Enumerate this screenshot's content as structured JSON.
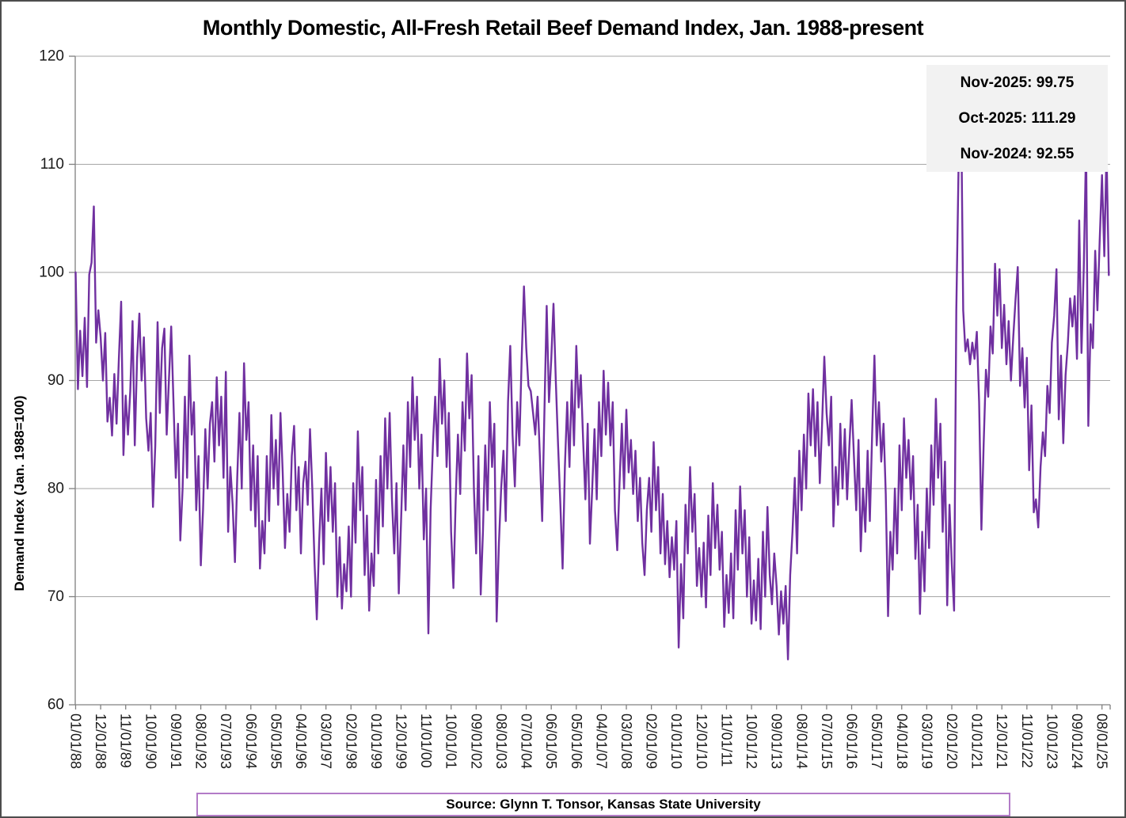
{
  "title": "Monthly Domestic, All-Fresh Retail Beef Demand Index, Jan. 1988-present",
  "y_axis": {
    "title": "Demand Index (Jan. 1988=100)",
    "ticks": [
      60,
      70,
      80,
      90,
      100,
      110,
      120
    ]
  },
  "annotation": {
    "lines": [
      "Nov-2025: 99.75",
      "Oct-2025: 111.29",
      "Nov-2024: 92.55"
    ]
  },
  "source": {
    "text": "Source: Glynn T. Tonsor, Kansas State University"
  },
  "colors": {
    "line": "#7030A0",
    "gridline": "#A6A6A6",
    "axis": "#808080",
    "tick_label": "#1a1a1a",
    "annotation_bg": "#F2F2F2",
    "source_border": "#B27BC7"
  },
  "chart_data": {
    "type": "line",
    "title": "Monthly Domestic, All-Fresh Retail Beef Demand Index, Jan. 1988-present",
    "xlabel": "",
    "ylabel": "Demand Index (Jan. 1988=100)",
    "ylim": [
      60,
      120
    ],
    "grid": "horizontal",
    "legend": "none",
    "x_start": "1988-01",
    "x_end": "2025-11",
    "frequency": "monthly",
    "x_tick_interval_months": 11,
    "x_tick_labels": [
      "01/01/88",
      "12/01/88",
      "11/01/89",
      "10/01/90",
      "09/01/91",
      "08/01/92",
      "07/01/93",
      "06/01/94",
      "05/01/95",
      "04/01/96",
      "03/01/97",
      "02/01/98",
      "01/01/99",
      "12/01/99",
      "11/01/00",
      "10/01/01",
      "09/01/02",
      "08/01/03",
      "07/01/04",
      "06/01/05",
      "05/01/06",
      "04/01/07",
      "03/01/08",
      "02/01/09",
      "01/01/10",
      "12/01/10",
      "11/01/11",
      "10/01/12",
      "09/01/13",
      "08/01/14",
      "07/01/15",
      "06/01/16",
      "05/01/17",
      "04/01/18",
      "03/01/19",
      "02/01/20",
      "01/01/21",
      "12/01/21",
      "11/01/22",
      "10/01/23",
      "09/01/24",
      "08/01/25"
    ],
    "annotated_points": {
      "Nov-2025": 99.75,
      "Oct-2025": 111.29,
      "Nov-2024": 92.55
    },
    "values": [
      100.0,
      89.2,
      94.6,
      90.4,
      95.8,
      89.4,
      99.8,
      100.9,
      106.1,
      93.5,
      96.5,
      94.0,
      90.0,
      94.4,
      86.2,
      88.4,
      84.9,
      90.6,
      86.0,
      92.0,
      97.3,
      83.1,
      88.6,
      85.0,
      89.0,
      95.5,
      84.0,
      92.0,
      96.2,
      90.0,
      94.0,
      86.5,
      83.5,
      87.0,
      78.3,
      84.0,
      95.4,
      87.0,
      93.0,
      94.8,
      85.0,
      90.0,
      95.0,
      88.0,
      81.0,
      86.0,
      75.2,
      80.0,
      88.5,
      81.0,
      92.3,
      85.0,
      88.0,
      78.0,
      83.0,
      72.9,
      78.0,
      85.5,
      80.0,
      86.0,
      88.0,
      82.5,
      90.3,
      84.0,
      88.5,
      81.0,
      90.8,
      76.0,
      82.0,
      78.5,
      73.2,
      81.0,
      87.0,
      80.0,
      91.6,
      84.5,
      88.0,
      78.0,
      84.0,
      76.5,
      83.0,
      72.6,
      77.0,
      74.0,
      83.0,
      77.0,
      86.8,
      80.0,
      84.5,
      78.5,
      87.0,
      81.5,
      74.5,
      79.5,
      76.0,
      83.0,
      85.8,
      78.0,
      82.0,
      74.0,
      80.5,
      82.5,
      78.5,
      85.5,
      80.0,
      73.0,
      67.9,
      75.0,
      80.0,
      73.0,
      83.3,
      77.0,
      82.0,
      76.0,
      80.5,
      70.0,
      75.5,
      68.9,
      73.0,
      70.5,
      76.5,
      70.0,
      80.5,
      75.0,
      85.3,
      78.0,
      82.0,
      72.0,
      77.5,
      68.7,
      74.0,
      71.0,
      80.8,
      74.0,
      83.0,
      76.5,
      86.5,
      80.0,
      87.0,
      79.0,
      74.0,
      80.5,
      70.3,
      77.0,
      84.0,
      78.0,
      88.0,
      82.0,
      90.3,
      84.5,
      88.5,
      80.0,
      85.0,
      75.3,
      80.0,
      66.6,
      78.0,
      84.0,
      88.5,
      83.0,
      92.0,
      86.0,
      90.0,
      82.0,
      87.0,
      76.0,
      70.8,
      79.0,
      85.0,
      79.5,
      88.0,
      83.5,
      92.5,
      86.5,
      90.5,
      80.0,
      74.0,
      83.0,
      70.2,
      76.0,
      84.0,
      78.0,
      88.0,
      82.0,
      86.0,
      67.7,
      75.0,
      80.0,
      83.5,
      77.0,
      88.0,
      93.2,
      85.0,
      80.2,
      88.0,
      84.0,
      92.0,
      98.7,
      93.0,
      89.5,
      89.0,
      87.0,
      85.0,
      88.5,
      83.0,
      77.0,
      87.0,
      96.9,
      88.0,
      92.0,
      97.1,
      90.0,
      84.0,
      78.5,
      72.6,
      82.0,
      88.0,
      82.0,
      90.0,
      84.0,
      93.2,
      87.5,
      90.5,
      84.5,
      79.0,
      86.0,
      74.9,
      80.0,
      85.5,
      79.0,
      88.0,
      83.0,
      90.9,
      85.0,
      89.8,
      84.0,
      88.0,
      78.0,
      74.3,
      80.5,
      86.0,
      80.0,
      87.3,
      81.5,
      84.5,
      79.5,
      83.5,
      77.0,
      81.0,
      75.0,
      72.0,
      78.0,
      81.0,
      76.0,
      84.3,
      78.0,
      82.0,
      74.0,
      79.5,
      73.0,
      77.0,
      71.8,
      75.5,
      72.5,
      77.0,
      65.3,
      73.0,
      68.0,
      78.5,
      74.0,
      82.0,
      76.0,
      79.5,
      71.0,
      74.5,
      70.0,
      75.0,
      69.0,
      77.5,
      72.0,
      80.5,
      74.5,
      78.5,
      72.5,
      76.0,
      67.2,
      72.0,
      68.5,
      74.0,
      68.0,
      78.0,
      72.5,
      80.2,
      74.0,
      78.0,
      70.0,
      75.5,
      67.5,
      71.5,
      67.8,
      73.5,
      67.0,
      76.0,
      70.0,
      78.3,
      72.0,
      69.3,
      74.0,
      71.0,
      66.5,
      70.5,
      67.5,
      71.0,
      64.2,
      72.0,
      76.0,
      81.0,
      74.0,
      83.5,
      78.0,
      85.0,
      80.0,
      88.8,
      84.0,
      89.2,
      83.0,
      88.0,
      80.5,
      86.0,
      92.2,
      87.0,
      84.0,
      88.5,
      76.5,
      82.0,
      78.5,
      86.0,
      80.0,
      85.5,
      79.0,
      84.0,
      88.2,
      83.0,
      78.0,
      84.5,
      74.2,
      80.0,
      76.0,
      83.5,
      77.0,
      85.0,
      92.3,
      84.0,
      88.0,
      82.5,
      86.0,
      79.5,
      68.2,
      76.0,
      72.5,
      80.0,
      74.0,
      84.0,
      78.0,
      86.5,
      81.0,
      84.5,
      79.0,
      83.0,
      73.5,
      78.5,
      68.4,
      76.0,
      70.5,
      80.0,
      74.5,
      84.0,
      78.5,
      88.3,
      81.0,
      86.0,
      76.0,
      82.5,
      69.2,
      78.5,
      73.0,
      68.7,
      96.5,
      110.0,
      117.3,
      96.5,
      92.7,
      93.8,
      91.5,
      93.5,
      92.0,
      94.5,
      88.0,
      76.2,
      84.0,
      91.0,
      88.5,
      95.0,
      92.5,
      100.8,
      96.0,
      100.3,
      93.0,
      97.0,
      91.5,
      95.5,
      90.0,
      94.0,
      97.5,
      100.5,
      89.5,
      93.0,
      87.5,
      92.1,
      81.7,
      87.7,
      77.8,
      79.0,
      76.4,
      82.0,
      85.2,
      83.0,
      89.5,
      87.0,
      93.5,
      96.0,
      100.3,
      86.4,
      92.3,
      84.2,
      90.5,
      93.5,
      97.6,
      95.0,
      97.8,
      92.0,
      104.8,
      92.55,
      100.5,
      111.8,
      85.8,
      95.2,
      93.0,
      102.0,
      96.5,
      103.0,
      109.0,
      101.5,
      111.29,
      99.75
    ]
  }
}
